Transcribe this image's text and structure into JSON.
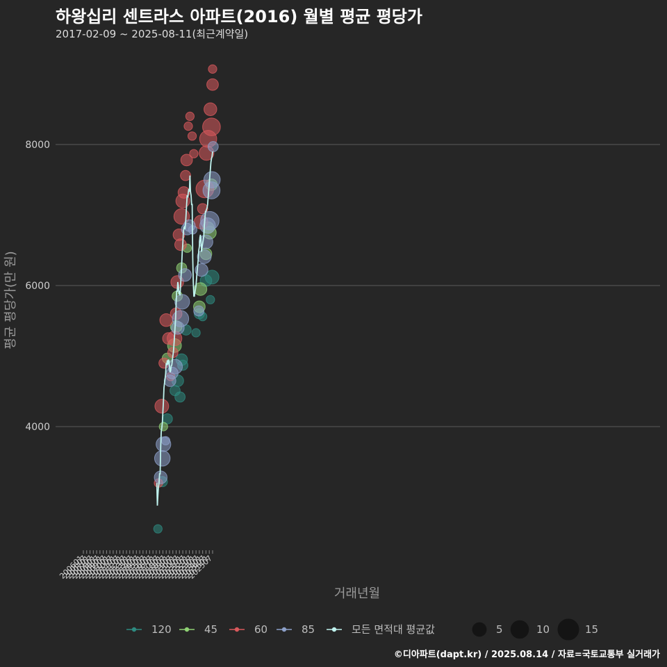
{
  "header": {
    "title": "하왕십리 센트라스 아파트(2016) 월별 평균 평당가",
    "subtitle": "2017-02-09 ~ 2025-08-11(최근계약일)"
  },
  "caption": "©디아파트(dapt.kr) / 2025.08.14 / 자료=국토교통부 실거래가",
  "colors": {
    "background": "#262626",
    "grid": "#5a5a5a",
    "120": "#2e8a80",
    "45": "#8fd174",
    "60": "#d9595c",
    "85": "#8c9fc8",
    "avg_line": "#bff2ee"
  },
  "chart_data": {
    "type": "scatter",
    "xlabel": "거래년월",
    "ylabel": "평균 평당가(만 원)",
    "x_ticks": [
      "200601",
      "200607",
      "200701",
      "200707",
      "200801",
      "200807",
      "200901",
      "200907",
      "201001",
      "201007",
      "201101",
      "201107",
      "201201",
      "201207",
      "201301",
      "201307",
      "201401",
      "201407",
      "201501",
      "201507",
      "201601",
      "201607",
      "201701",
      "201707",
      "201801",
      "201807",
      "201901",
      "201907",
      "202001",
      "202007",
      "202101",
      "202107",
      "202201",
      "202207",
      "202301",
      "202307",
      "202401",
      "202407",
      "202501",
      "202507"
    ],
    "y_ticks": [
      4000,
      6000,
      8000
    ],
    "ylim": [
      2300,
      9200
    ],
    "grid": true,
    "legend_placement": "bottom",
    "size_legend": [
      5,
      10,
      15
    ],
    "series": [
      {
        "name": "120",
        "color_key": "120",
        "points": [
          {
            "x": "2017-04",
            "y": 2550,
            "n": 1
          },
          {
            "x": "2017-12",
            "y": 3220,
            "n": 2
          },
          {
            "x": "2018-09",
            "y": 4110,
            "n": 2
          },
          {
            "x": "2019-11",
            "y": 4510,
            "n": 2
          },
          {
            "x": "2020-04",
            "y": 4650,
            "n": 3
          },
          {
            "x": "2020-08",
            "y": 4420,
            "n": 2
          },
          {
            "x": "2020-11",
            "y": 4950,
            "n": 3
          },
          {
            "x": "2021-01",
            "y": 4870,
            "n": 2
          },
          {
            "x": "2021-07",
            "y": 5370,
            "n": 2
          },
          {
            "x": "2023-01",
            "y": 5330,
            "n": 1
          },
          {
            "x": "2023-07",
            "y": 5600,
            "n": 2
          },
          {
            "x": "2024-01",
            "y": 5560,
            "n": 1
          },
          {
            "x": "2024-07",
            "y": 6070,
            "n": 3
          },
          {
            "x": "2025-03",
            "y": 5800,
            "n": 1
          },
          {
            "x": "2025-06",
            "y": 6120,
            "n": 5
          }
        ]
      },
      {
        "name": "45",
        "color_key": "45",
        "points": [
          {
            "x": "2018-02",
            "y": 4000,
            "n": 1
          },
          {
            "x": "2018-09",
            "y": 4970,
            "n": 2
          },
          {
            "x": "2019-10",
            "y": 5150,
            "n": 5
          },
          {
            "x": "2020-01",
            "y": 5420,
            "n": 3
          },
          {
            "x": "2020-03",
            "y": 5850,
            "n": 2
          },
          {
            "x": "2020-11",
            "y": 6250,
            "n": 2
          },
          {
            "x": "2021-09",
            "y": 6530,
            "n": 1
          },
          {
            "x": "2023-07",
            "y": 5700,
            "n": 3
          },
          {
            "x": "2023-09",
            "y": 5950,
            "n": 4
          },
          {
            "x": "2024-07",
            "y": 6450,
            "n": 3
          },
          {
            "x": "2024-11",
            "y": 6820,
            "n": 3
          },
          {
            "x": "2025-02",
            "y": 6750,
            "n": 4
          },
          {
            "x": "2025-05",
            "y": 7430,
            "n": 3
          }
        ]
      },
      {
        "name": "60",
        "color_key": "60",
        "points": [
          {
            "x": "2017-05",
            "y": 3200,
            "n": 1
          },
          {
            "x": "2017-11",
            "y": 4290,
            "n": 5
          },
          {
            "x": "2018-03",
            "y": 4900,
            "n": 2
          },
          {
            "x": "2018-07",
            "y": 5510,
            "n": 4
          },
          {
            "x": "2018-11",
            "y": 5250,
            "n": 3
          },
          {
            "x": "2019-03",
            "y": 4710,
            "n": 1
          },
          {
            "x": "2019-07",
            "y": 5050,
            "n": 2
          },
          {
            "x": "2019-10",
            "y": 5250,
            "n": 6
          },
          {
            "x": "2020-01",
            "y": 5600,
            "n": 3
          },
          {
            "x": "2020-03",
            "y": 6050,
            "n": 4
          },
          {
            "x": "2020-06",
            "y": 6720,
            "n": 3
          },
          {
            "x": "2020-09",
            "y": 6580,
            "n": 3
          },
          {
            "x": "2020-11",
            "y": 6980,
            "n": 7
          },
          {
            "x": "2021-01",
            "y": 7200,
            "n": 5
          },
          {
            "x": "2021-03",
            "y": 7320,
            "n": 3
          },
          {
            "x": "2021-06",
            "y": 7560,
            "n": 2
          },
          {
            "x": "2021-08",
            "y": 7780,
            "n": 3
          },
          {
            "x": "2021-11",
            "y": 8260,
            "n": 1
          },
          {
            "x": "2022-02",
            "y": 8400,
            "n": 1
          },
          {
            "x": "2022-06",
            "y": 8120,
            "n": 1
          },
          {
            "x": "2022-09",
            "y": 7870,
            "n": 1
          },
          {
            "x": "2023-10",
            "y": 6900,
            "n": 5
          },
          {
            "x": "2024-01",
            "y": 7090,
            "n": 2
          },
          {
            "x": "2024-05",
            "y": 7370,
            "n": 10
          },
          {
            "x": "2024-08",
            "y": 7880,
            "n": 6
          },
          {
            "x": "2024-11",
            "y": 8080,
            "n": 9
          },
          {
            "x": "2025-03",
            "y": 8500,
            "n": 4
          },
          {
            "x": "2025-05",
            "y": 8250,
            "n": 10
          },
          {
            "x": "2025-07",
            "y": 8850,
            "n": 3
          },
          {
            "x": "2025-07",
            "y": 9070,
            "n": 1
          }
        ]
      },
      {
        "name": "85",
        "color_key": "85",
        "points": [
          {
            "x": "2017-09",
            "y": 3280,
            "n": 4
          },
          {
            "x": "2017-12",
            "y": 3550,
            "n": 7
          },
          {
            "x": "2018-02",
            "y": 3750,
            "n": 6
          },
          {
            "x": "2018-06",
            "y": 3800,
            "n": 1
          },
          {
            "x": "2019-02",
            "y": 4650,
            "n": 3
          },
          {
            "x": "2019-06",
            "y": 4760,
            "n": 3
          },
          {
            "x": "2019-11",
            "y": 4850,
            "n": 6
          },
          {
            "x": "2020-04",
            "y": 5400,
            "n": 4
          },
          {
            "x": "2020-09",
            "y": 5530,
            "n": 8
          },
          {
            "x": "2020-12",
            "y": 5770,
            "n": 6
          },
          {
            "x": "2021-05",
            "y": 6150,
            "n": 4
          },
          {
            "x": "2021-09",
            "y": 6800,
            "n": 3
          },
          {
            "x": "2022-01",
            "y": 6850,
            "n": 3
          },
          {
            "x": "2022-07",
            "y": 6790,
            "n": 1
          },
          {
            "x": "2023-06",
            "y": 5640,
            "n": 2
          },
          {
            "x": "2023-11",
            "y": 6220,
            "n": 4
          },
          {
            "x": "2024-04",
            "y": 6410,
            "n": 5
          },
          {
            "x": "2024-07",
            "y": 6620,
            "n": 5
          },
          {
            "x": "2024-10",
            "y": 6850,
            "n": 7
          },
          {
            "x": "2025-02",
            "y": 6920,
            "n": 11
          },
          {
            "x": "2025-05",
            "y": 7350,
            "n": 9
          },
          {
            "x": "2025-06",
            "y": 7500,
            "n": 8
          },
          {
            "x": "2025-08",
            "y": 7970,
            "n": 2
          }
        ]
      }
    ],
    "avg_line": {
      "name": "모든 면적대 평균값",
      "color_key": "avg_line",
      "points": [
        {
          "x": "2017-02",
          "y": 3200
        },
        {
          "x": "2017-03",
          "y": 2880
        },
        {
          "x": "2017-04",
          "y": 3030
        },
        {
          "x": "2017-05",
          "y": 3150
        },
        {
          "x": "2017-06",
          "y": 3200
        },
        {
          "x": "2017-07",
          "y": 3330
        },
        {
          "x": "2017-08",
          "y": 3330
        },
        {
          "x": "2017-09",
          "y": 3720
        },
        {
          "x": "2017-10",
          "y": 3930
        },
        {
          "x": "2017-11",
          "y": 3980
        },
        {
          "x": "2017-12",
          "y": 4060
        },
        {
          "x": "2018-01",
          "y": 4220
        },
        {
          "x": "2018-02",
          "y": 4350
        },
        {
          "x": "2018-03",
          "y": 4550
        },
        {
          "x": "2018-04",
          "y": 4620
        },
        {
          "x": "2018-05",
          "y": 4680
        },
        {
          "x": "2018-06",
          "y": 4750
        },
        {
          "x": "2018-07",
          "y": 4900
        },
        {
          "x": "2018-08",
          "y": 4870
        },
        {
          "x": "2018-09",
          "y": 4940
        },
        {
          "x": "2018-10",
          "y": 4880
        },
        {
          "x": "2018-11",
          "y": 4950
        },
        {
          "x": "2018-12",
          "y": 4930
        },
        {
          "x": "2019-01",
          "y": 4850
        },
        {
          "x": "2019-02",
          "y": 4770
        },
        {
          "x": "2019-03",
          "y": 4790
        },
        {
          "x": "2019-04",
          "y": 4860
        },
        {
          "x": "2019-05",
          "y": 4870
        },
        {
          "x": "2019-06",
          "y": 4930
        },
        {
          "x": "2019-07",
          "y": 5000
        },
        {
          "x": "2019-08",
          "y": 5060
        },
        {
          "x": "2019-09",
          "y": 5150
        },
        {
          "x": "2019-10",
          "y": 5270
        },
        {
          "x": "2019-11",
          "y": 5400
        },
        {
          "x": "2019-12",
          "y": 5520
        },
        {
          "x": "2020-01",
          "y": 5740
        },
        {
          "x": "2020-02",
          "y": 5920
        },
        {
          "x": "2020-03",
          "y": 5920
        },
        {
          "x": "2020-04",
          "y": 6050
        },
        {
          "x": "2020-05",
          "y": 6000
        },
        {
          "x": "2020-06",
          "y": 5880
        },
        {
          "x": "2020-07",
          "y": 5900
        },
        {
          "x": "2020-08",
          "y": 5860
        },
        {
          "x": "2020-09",
          "y": 6000
        },
        {
          "x": "2020-10",
          "y": 6150
        },
        {
          "x": "2020-11",
          "y": 6300
        },
        {
          "x": "2020-12",
          "y": 6480
        },
        {
          "x": "2021-01",
          "y": 6590
        },
        {
          "x": "2021-02",
          "y": 6750
        },
        {
          "x": "2021-03",
          "y": 6820
        },
        {
          "x": "2021-04",
          "y": 6830
        },
        {
          "x": "2021-05",
          "y": 6800
        },
        {
          "x": "2021-06",
          "y": 6870
        },
        {
          "x": "2021-07",
          "y": 7000
        },
        {
          "x": "2021-08",
          "y": 7150
        },
        {
          "x": "2021-09",
          "y": 7280
        },
        {
          "x": "2021-10",
          "y": 7250
        },
        {
          "x": "2021-11",
          "y": 7320
        },
        {
          "x": "2021-12",
          "y": 7370
        },
        {
          "x": "2022-01",
          "y": 7330
        },
        {
          "x": "2022-02",
          "y": 7560
        },
        {
          "x": "2022-03",
          "y": 7330
        },
        {
          "x": "2022-04",
          "y": 7280
        },
        {
          "x": "2022-05",
          "y": 7150
        },
        {
          "x": "2022-06",
          "y": 7150
        },
        {
          "x": "2022-07",
          "y": 6390
        },
        {
          "x": "2022-08",
          "y": 6050
        },
        {
          "x": "2022-09",
          "y": 5850
        },
        {
          "x": "2022-10",
          "y": 5850
        },
        {
          "x": "2022-11",
          "y": 5900
        },
        {
          "x": "2022-12",
          "y": 5950
        },
        {
          "x": "2023-01",
          "y": 6000
        },
        {
          "x": "2023-02",
          "y": 6100
        },
        {
          "x": "2023-03",
          "y": 6200
        },
        {
          "x": "2023-04",
          "y": 6280
        },
        {
          "x": "2023-05",
          "y": 6370
        },
        {
          "x": "2023-06",
          "y": 6500
        },
        {
          "x": "2023-07",
          "y": 6550
        },
        {
          "x": "2023-08",
          "y": 6680
        },
        {
          "x": "2023-09",
          "y": 6720
        },
        {
          "x": "2023-10",
          "y": 6620
        },
        {
          "x": "2023-11",
          "y": 6480
        },
        {
          "x": "2023-12",
          "y": 6550
        },
        {
          "x": "2024-01",
          "y": 6600
        },
        {
          "x": "2024-02",
          "y": 6650
        },
        {
          "x": "2024-03",
          "y": 6700
        },
        {
          "x": "2024-04",
          "y": 6850
        },
        {
          "x": "2024-05",
          "y": 6950
        },
        {
          "x": "2024-06",
          "y": 7050
        },
        {
          "x": "2024-07",
          "y": 7050
        },
        {
          "x": "2024-08",
          "y": 7080
        },
        {
          "x": "2024-09",
          "y": 7100
        },
        {
          "x": "2024-10",
          "y": 7150
        },
        {
          "x": "2024-11",
          "y": 7250
        },
        {
          "x": "2024-12",
          "y": 7350
        },
        {
          "x": "2025-01",
          "y": 7450
        },
        {
          "x": "2025-02",
          "y": 7550
        },
        {
          "x": "2025-03",
          "y": 7650
        },
        {
          "x": "2025-04",
          "y": 7750
        },
        {
          "x": "2025-05",
          "y": 7800
        },
        {
          "x": "2025-06",
          "y": 7830
        },
        {
          "x": "2025-07",
          "y": 7900
        }
      ]
    }
  }
}
